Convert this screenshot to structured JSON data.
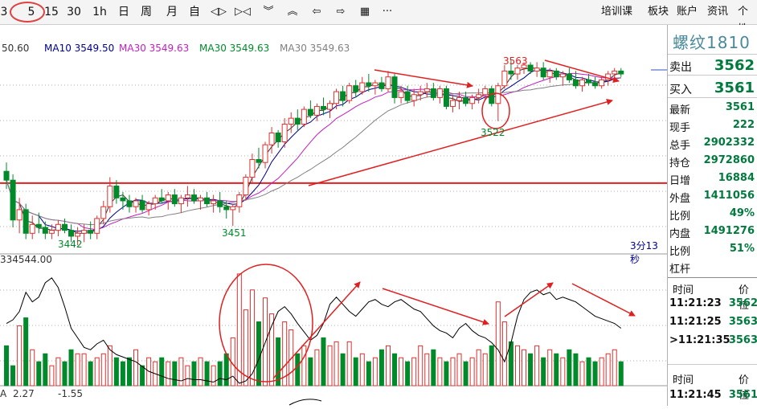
{
  "toolbar": {
    "periods": [
      {
        "label": "3",
        "name": "period-3m-button"
      },
      {
        "label": "5",
        "name": "period-5m-button"
      },
      {
        "label": "15",
        "name": "period-15m-button"
      },
      {
        "label": "30",
        "name": "period-30m-button"
      },
      {
        "label": "1h",
        "name": "period-1h-button"
      },
      {
        "label": "日",
        "name": "period-day-button"
      },
      {
        "label": "周",
        "name": "period-week-button"
      },
      {
        "label": "月",
        "name": "period-month-button"
      },
      {
        "label": "自",
        "name": "period-custom-button"
      }
    ],
    "tools": [
      {
        "glyph": "◁▷",
        "name": "zoom-in-icon"
      },
      {
        "glyph": "▷◁",
        "name": "zoom-out-icon"
      },
      {
        "glyph": "︾",
        "name": "scroll-down-icon"
      },
      {
        "glyph": "︽",
        "name": "scroll-up-icon"
      },
      {
        "glyph": "⇦",
        "name": "move-left-icon"
      },
      {
        "glyph": "⇨",
        "name": "move-right-icon"
      },
      {
        "glyph": "▦",
        "name": "layout-icon"
      },
      {
        "glyph": "···",
        "name": "more-icon"
      }
    ],
    "right_menu": [
      "培训课",
      "板块",
      "账户",
      "资讯",
      "个性"
    ]
  },
  "legend": {
    "ma5": "50.60",
    "ma10": "MA10 3549.50",
    "ma20": "MA30 3549.63",
    "ma30": "MA30 3549.63",
    "ma60": "MA30 3549.63"
  },
  "annotations": {
    "high": "3563",
    "mid_low": "3522",
    "low_left": "3442",
    "low_mid": "3451",
    "countdown": "3分13秒"
  },
  "volume": {
    "label": "334544.00",
    "ind_a": "A",
    "ind_v1": "2.27",
    "ind_v2": "-1.55"
  },
  "quote": {
    "title": "螺纹1810",
    "sell": {
      "label": "卖出",
      "value": "3562"
    },
    "buy": {
      "label": "买入",
      "value": "3561"
    },
    "rows": [
      {
        "label": "最新",
        "value": "3561"
      },
      {
        "label": "现手",
        "value": "222"
      },
      {
        "label": "总手",
        "value": "2902332"
      },
      {
        "label": "持仓",
        "value": "2972860"
      },
      {
        "label": "日增",
        "value": "16884"
      },
      {
        "label": "外盘",
        "value": "1411056"
      },
      {
        "label": "比例",
        "value": "49%"
      },
      {
        "label": "内盘",
        "value": "1491276"
      },
      {
        "label": "比例",
        "value": "51%"
      },
      {
        "label": "杠杆",
        "value": ""
      }
    ]
  },
  "ticks": {
    "header_time": "时间",
    "header_price": "价位",
    "rows": [
      {
        "time": "11:21:23",
        "price": "3562"
      },
      {
        "time": "11:21:25",
        "price": "3563"
      },
      {
        "time": ">11:21:35",
        "price": "3563"
      }
    ],
    "header2_time": "时间",
    "header2_price": "价位",
    "rows2": [
      {
        "time": "11:21:45",
        "price": "3561"
      }
    ]
  },
  "colors": {
    "up": "#e03030",
    "down": "#008a2a",
    "ma10": "#00008b",
    "ma20": "#c020c0",
    "ma30": "#008a2a",
    "ma60": "#808080",
    "annotation": "#e02020"
  },
  "chart_data": {
    "type": "candlestick",
    "price_axis_note": "values in price units",
    "support_level": 3480,
    "candles": [
      [
        3488,
        3494,
        3476,
        3482
      ],
      [
        3482,
        3486,
        3450,
        3455
      ],
      [
        3455,
        3470,
        3446,
        3462
      ],
      [
        3462,
        3466,
        3442,
        3446
      ],
      [
        3446,
        3458,
        3442,
        3452
      ],
      [
        3452,
        3460,
        3446,
        3450
      ],
      [
        3450,
        3454,
        3442,
        3446
      ],
      [
        3446,
        3452,
        3442,
        3448
      ],
      [
        3448,
        3455,
        3444,
        3452
      ],
      [
        3452,
        3456,
        3446,
        3448
      ],
      [
        3448,
        3452,
        3440,
        3444
      ],
      [
        3444,
        3450,
        3438,
        3446
      ],
      [
        3446,
        3452,
        3440,
        3448
      ],
      [
        3448,
        3454,
        3442,
        3446
      ],
      [
        3446,
        3458,
        3442,
        3456
      ],
      [
        3456,
        3468,
        3452,
        3464
      ],
      [
        3464,
        3484,
        3460,
        3478
      ],
      [
        3478,
        3482,
        3466,
        3470
      ],
      [
        3470,
        3474,
        3462,
        3468
      ],
      [
        3468,
        3472,
        3460,
        3464
      ],
      [
        3464,
        3470,
        3460,
        3468
      ],
      [
        3468,
        3472,
        3460,
        3462
      ],
      [
        3462,
        3468,
        3458,
        3466
      ],
      [
        3466,
        3472,
        3462,
        3470
      ],
      [
        3470,
        3476,
        3466,
        3468
      ],
      [
        3468,
        3474,
        3462,
        3472
      ],
      [
        3472,
        3476,
        3464,
        3466
      ],
      [
        3466,
        3472,
        3460,
        3470
      ],
      [
        3470,
        3478,
        3464,
        3472
      ],
      [
        3472,
        3476,
        3466,
        3468
      ],
      [
        3468,
        3472,
        3462,
        3470
      ],
      [
        3470,
        3474,
        3464,
        3466
      ],
      [
        3466,
        3472,
        3460,
        3468
      ],
      [
        3468,
        3474,
        3460,
        3464
      ],
      [
        3464,
        3468,
        3456,
        3462
      ],
      [
        3462,
        3466,
        3451,
        3464
      ],
      [
        3464,
        3474,
        3460,
        3472
      ],
      [
        3472,
        3486,
        3468,
        3484
      ],
      [
        3484,
        3500,
        3480,
        3496
      ],
      [
        3496,
        3504,
        3490,
        3494
      ],
      [
        3494,
        3508,
        3490,
        3506
      ],
      [
        3506,
        3518,
        3500,
        3514
      ],
      [
        3514,
        3516,
        3504,
        3508
      ],
      [
        3508,
        3524,
        3504,
        3520
      ],
      [
        3520,
        3528,
        3514,
        3524
      ],
      [
        3524,
        3530,
        3516,
        3520
      ],
      [
        3520,
        3532,
        3518,
        3530
      ],
      [
        3530,
        3536,
        3524,
        3526
      ],
      [
        3526,
        3534,
        3522,
        3532
      ],
      [
        3532,
        3538,
        3526,
        3530
      ],
      [
        3530,
        3536,
        3524,
        3534
      ],
      [
        3534,
        3544,
        3530,
        3542
      ],
      [
        3542,
        3546,
        3532,
        3536
      ],
      [
        3536,
        3548,
        3534,
        3546
      ],
      [
        3546,
        3550,
        3538,
        3542
      ],
      [
        3542,
        3552,
        3540,
        3548
      ],
      [
        3548,
        3554,
        3542,
        3546
      ],
      [
        3546,
        3550,
        3540,
        3548
      ],
      [
        3548,
        3552,
        3542,
        3544
      ],
      [
        3544,
        3556,
        3542,
        3552
      ],
      [
        3552,
        3554,
        3534,
        3538
      ],
      [
        3538,
        3546,
        3534,
        3542
      ],
      [
        3542,
        3546,
        3534,
        3536
      ],
      [
        3536,
        3544,
        3532,
        3540
      ],
      [
        3540,
        3546,
        3536,
        3542
      ],
      [
        3542,
        3548,
        3538,
        3544
      ],
      [
        3544,
        3548,
        3536,
        3538
      ],
      [
        3538,
        3546,
        3534,
        3544
      ],
      [
        3544,
        3546,
        3530,
        3532
      ],
      [
        3532,
        3540,
        3528,
        3536
      ],
      [
        3536,
        3542,
        3530,
        3538
      ],
      [
        3538,
        3542,
        3532,
        3534
      ],
      [
        3534,
        3540,
        3530,
        3538
      ],
      [
        3538,
        3544,
        3534,
        3540
      ],
      [
        3540,
        3546,
        3536,
        3544
      ],
      [
        3544,
        3546,
        3532,
        3534
      ],
      [
        3534,
        3548,
        3522,
        3546
      ],
      [
        3546,
        3560,
        3544,
        3556
      ],
      [
        3556,
        3563,
        3550,
        3554
      ],
      [
        3554,
        3560,
        3550,
        3558
      ],
      [
        3558,
        3562,
        3554,
        3560
      ],
      [
        3560,
        3562,
        3554,
        3556
      ],
      [
        3556,
        3562,
        3552,
        3558
      ],
      [
        3558,
        3562,
        3550,
        3552
      ],
      [
        3552,
        3558,
        3548,
        3556
      ],
      [
        3556,
        3558,
        3550,
        3552
      ],
      [
        3552,
        3556,
        3546,
        3554
      ],
      [
        3554,
        3558,
        3548,
        3550
      ],
      [
        3550,
        3556,
        3544,
        3546
      ],
      [
        3546,
        3552,
        3542,
        3550
      ],
      [
        3550,
        3554,
        3546,
        3548
      ],
      [
        3548,
        3552,
        3544,
        3546
      ],
      [
        3546,
        3552,
        3544,
        3550
      ],
      [
        3550,
        3556,
        3546,
        3554
      ],
      [
        3554,
        3558,
        3550,
        3556
      ],
      [
        3556,
        3558,
        3552,
        3554
      ]
    ],
    "volume": [
      50,
      25,
      75,
      85,
      45,
      30,
      40,
      25,
      35,
      30,
      45,
      40,
      40,
      30,
      35,
      40,
      50,
      35,
      30,
      35,
      45,
      25,
      35,
      30,
      35,
      30,
      30,
      35,
      25,
      30,
      35,
      30,
      25,
      30,
      40,
      60,
      140,
      95,
      120,
      80,
      110,
      90,
      60,
      80,
      70,
      40,
      50,
      35,
      45,
      60,
      50,
      55,
      40,
      55,
      35,
      40,
      30,
      35,
      45,
      50,
      40,
      35,
      30,
      35,
      50,
      40,
      45,
      35,
      30,
      35,
      40,
      30,
      35,
      45,
      40,
      50,
      105,
      80,
      55,
      50,
      45,
      40,
      50,
      35,
      45,
      40,
      35,
      45,
      40,
      30,
      35,
      30,
      35,
      40,
      45,
      30
    ],
    "oscillator": [
      0.52,
      0.55,
      0.62,
      0.78,
      0.7,
      0.74,
      0.86,
      0.9,
      0.82,
      0.66,
      0.48,
      0.4,
      0.32,
      0.3,
      0.35,
      0.38,
      0.3,
      0.26,
      0.24,
      0.22,
      0.2,
      0.16,
      0.12,
      0.1,
      0.08,
      0.06,
      0.05,
      0.04,
      0.06,
      0.05,
      0.05,
      0.04,
      0.03,
      0.06,
      0.05,
      0.08,
      0.02,
      0.04,
      0.1,
      0.22,
      0.36,
      0.5,
      0.62,
      0.66,
      0.6,
      0.52,
      0.45,
      0.38,
      0.42,
      0.52,
      0.68,
      0.74,
      0.68,
      0.62,
      0.58,
      0.64,
      0.7,
      0.72,
      0.68,
      0.66,
      0.7,
      0.72,
      0.68,
      0.64,
      0.62,
      0.56,
      0.5,
      0.46,
      0.44,
      0.4,
      0.48,
      0.52,
      0.46,
      0.42,
      0.4,
      0.36,
      0.3,
      0.2,
      0.36,
      0.58,
      0.72,
      0.78,
      0.8,
      0.76,
      0.78,
      0.72,
      0.74,
      0.72,
      0.7,
      0.66,
      0.62,
      0.58,
      0.56,
      0.54,
      0.52,
      0.48
    ]
  }
}
